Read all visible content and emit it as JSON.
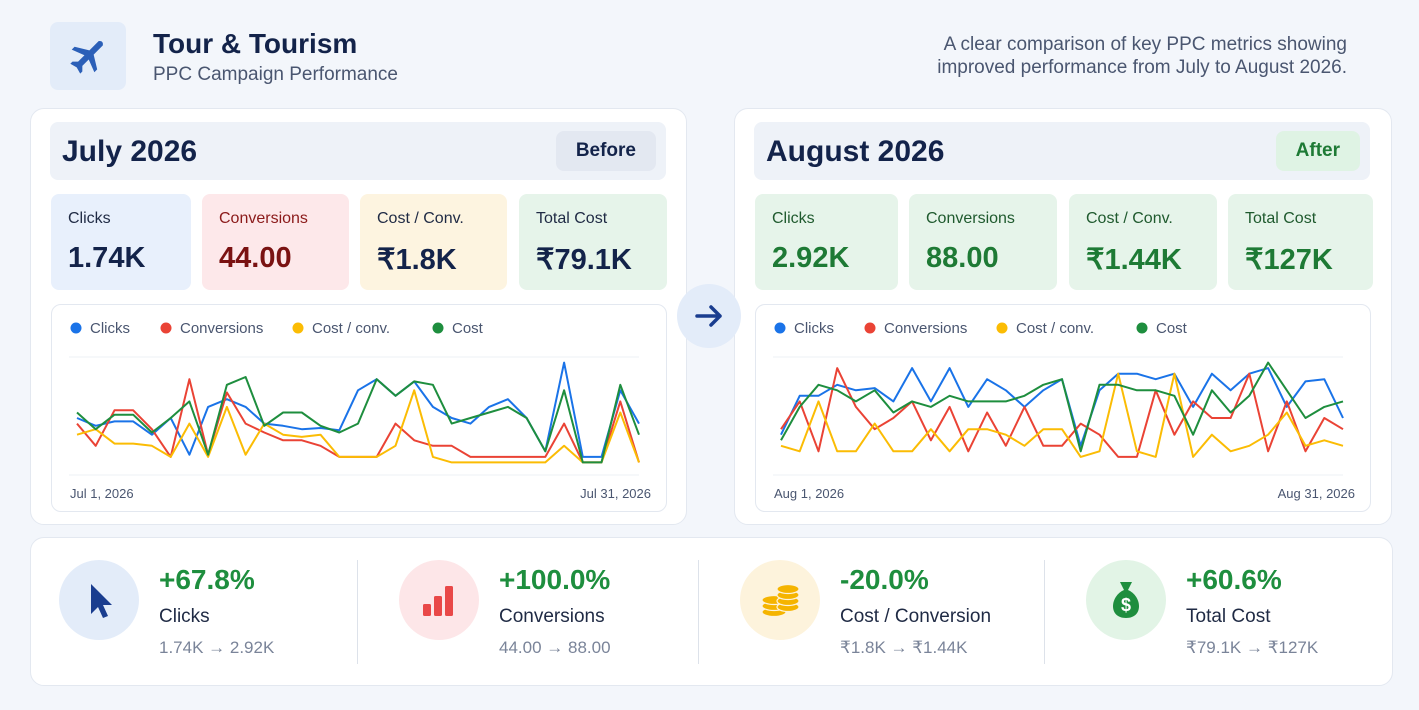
{
  "header": {
    "title": "Tour & Tourism",
    "subtitle": "PPC Campaign Performance",
    "description": [
      "A clear comparison of key PPC metrics showing",
      "improved performance from July to August 2026."
    ]
  },
  "panels": [
    {
      "title": "July 2026",
      "badge": "Before",
      "kpis": [
        {
          "label": "Clicks",
          "value": "1.74K"
        },
        {
          "label": "Conversions",
          "value": "44.00"
        },
        {
          "label": "Cost / Conv.",
          "value": "₹1.8K"
        },
        {
          "label": "Total Cost",
          "value": "₹79.1K"
        }
      ]
    },
    {
      "title": "August 2026",
      "badge": "After",
      "kpis": [
        {
          "label": "Clicks",
          "value": "2.92K"
        },
        {
          "label": "Conversions",
          "value": "88.00"
        },
        {
          "label": "Cost / Conv.",
          "value": "₹1.44K"
        },
        {
          "label": "Total Cost",
          "value": "₹127K"
        }
      ]
    }
  ],
  "chart_data": [
    {
      "type": "line",
      "ylim": [
        0,
        100
      ],
      "categories": [
        "Jul 1, 2026",
        null,
        null,
        null,
        null,
        null,
        null,
        null,
        null,
        null,
        null,
        null,
        null,
        null,
        null,
        null,
        null,
        null,
        null,
        null,
        null,
        null,
        null,
        null,
        null,
        null,
        null,
        null,
        null,
        null,
        "Jul 31, 2026"
      ],
      "series": [
        {
          "name": "Clicks",
          "color": "#1a73e8",
          "values": [
            45,
            38,
            42,
            42,
            30,
            45,
            12,
            55,
            62,
            55,
            40,
            38,
            35,
            36,
            34,
            70,
            80,
            65,
            78,
            55,
            45,
            40,
            55,
            62,
            45,
            15,
            95,
            10,
            10,
            70,
            40
          ]
        },
        {
          "name": "Conversions",
          "color": "#ea4335",
          "values": [
            40,
            20,
            52,
            52,
            35,
            10,
            80,
            12,
            68,
            40,
            32,
            25,
            25,
            20,
            10,
            10,
            10,
            40,
            25,
            20,
            20,
            10,
            10,
            10,
            10,
            10,
            40,
            5,
            5,
            60,
            5
          ]
        },
        {
          "name": "Cost / conv.",
          "color": "#fbbc04",
          "values": [
            30,
            35,
            22,
            22,
            20,
            10,
            40,
            10,
            55,
            12,
            40,
            30,
            28,
            30,
            10,
            10,
            10,
            20,
            70,
            10,
            5,
            5,
            5,
            5,
            5,
            5,
            20,
            5,
            5,
            50,
            5
          ]
        },
        {
          "name": "Cost",
          "color": "#1e8e3e",
          "values": [
            50,
            35,
            48,
            48,
            32,
            45,
            60,
            12,
            75,
            82,
            38,
            50,
            50,
            38,
            32,
            40,
            80,
            65,
            78,
            75,
            40,
            45,
            50,
            55,
            45,
            15,
            70,
            5,
            5,
            75,
            30
          ]
        }
      ]
    },
    {
      "type": "line",
      "ylim": [
        0,
        100
      ],
      "categories": [
        "Aug 1, 2026",
        null,
        null,
        null,
        null,
        null,
        null,
        null,
        null,
        null,
        null,
        null,
        null,
        null,
        null,
        null,
        null,
        null,
        null,
        null,
        null,
        null,
        null,
        null,
        null,
        null,
        null,
        null,
        null,
        null,
        "Aug 31, 2026"
      ],
      "series": [
        {
          "name": "Clicks",
          "color": "#1a73e8",
          "values": [
            30,
            65,
            65,
            75,
            70,
            72,
            60,
            90,
            60,
            90,
            55,
            80,
            70,
            55,
            70,
            80,
            20,
            70,
            85,
            85,
            80,
            85,
            55,
            85,
            70,
            85,
            90,
            55,
            78,
            80,
            45
          ]
        },
        {
          "name": "Conversions",
          "color": "#ea4335",
          "values": [
            35,
            60,
            15,
            90,
            55,
            35,
            45,
            60,
            25,
            55,
            15,
            50,
            20,
            55,
            20,
            20,
            40,
            30,
            10,
            10,
            70,
            30,
            60,
            45,
            45,
            85,
            15,
            60,
            15,
            45,
            35
          ]
        },
        {
          "name": "Cost / conv.",
          "color": "#fbbc04",
          "values": [
            20,
            15,
            60,
            15,
            15,
            40,
            15,
            15,
            35,
            15,
            35,
            35,
            30,
            20,
            35,
            35,
            10,
            15,
            85,
            15,
            10,
            85,
            10,
            30,
            15,
            20,
            30,
            50,
            20,
            25,
            20
          ]
        },
        {
          "name": "Cost",
          "color": "#1e8e3e",
          "values": [
            25,
            55,
            75,
            70,
            60,
            70,
            50,
            60,
            55,
            65,
            60,
            60,
            60,
            65,
            75,
            80,
            15,
            75,
            75,
            70,
            70,
            65,
            30,
            70,
            50,
            65,
            95,
            70,
            45,
            55,
            60
          ]
        }
      ]
    }
  ],
  "summary": [
    {
      "change": "+67.8%",
      "label": "Clicks",
      "detail": "1.74K → 2.92K"
    },
    {
      "change": "+100.0%",
      "label": "Conversions",
      "detail": "44.00 → 88.00"
    },
    {
      "change": "-20.0%",
      "label": "Cost / Conversion",
      "detail": "₹1.8K → ₹1.44K"
    },
    {
      "change": "+60.6%",
      "label": "Total Cost",
      "detail": "₹79.1K → ₹127K"
    }
  ]
}
